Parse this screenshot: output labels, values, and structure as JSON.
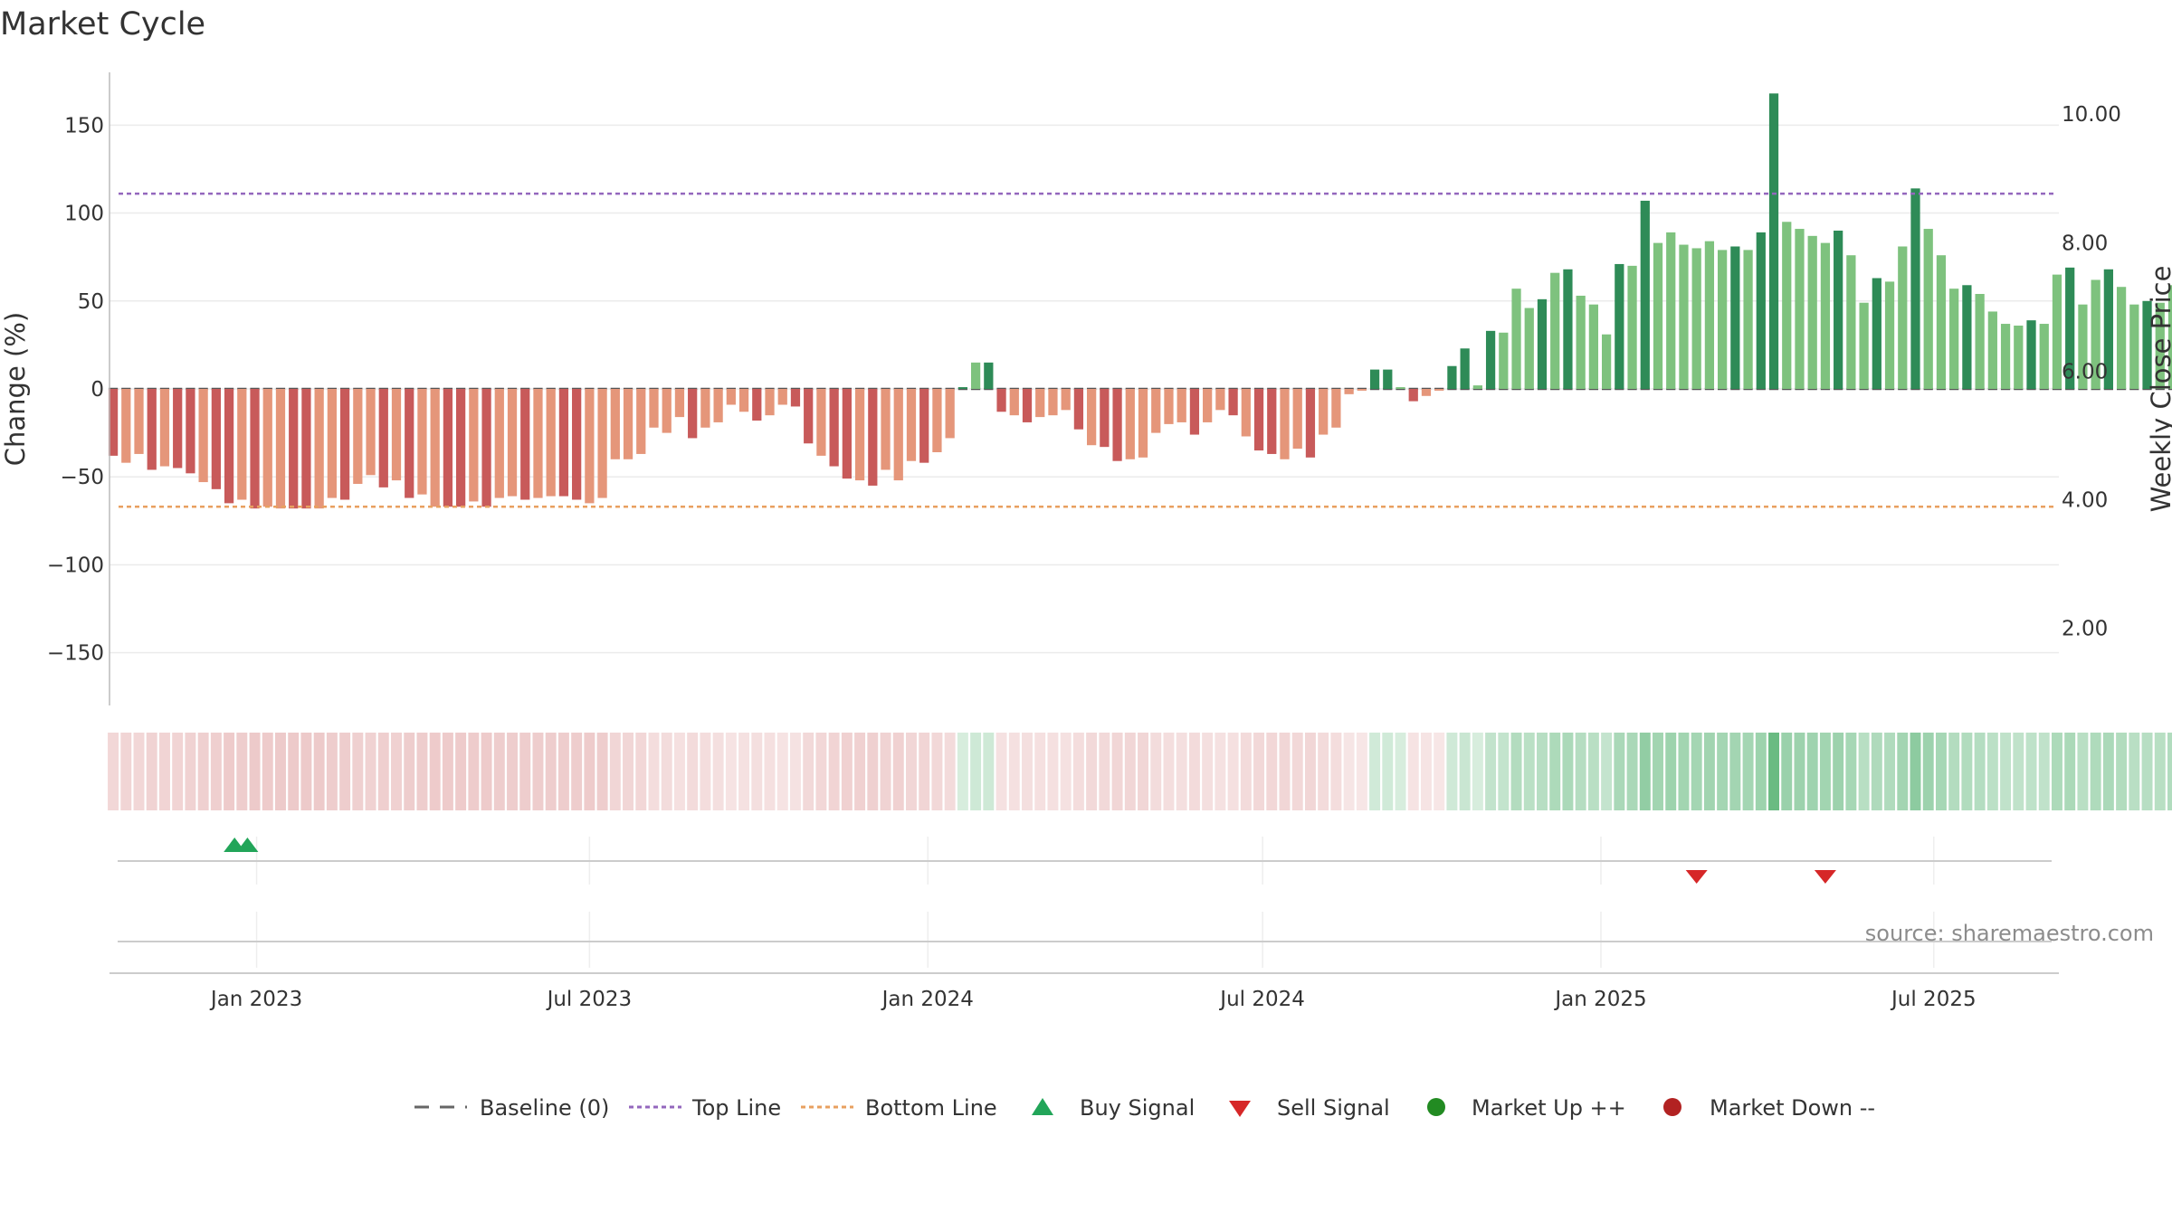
{
  "chart_data": {
    "type": "bar",
    "title": "Market Cycle",
    "ylabel": "Change (%)",
    "y2label": "Weekly Close Price",
    "ylim": [
      -180,
      180
    ],
    "yticks": [
      150,
      100,
      50,
      0,
      -50,
      -100,
      -150
    ],
    "ytick_labels": [
      "150",
      "100",
      "50",
      "0",
      "−50",
      "−100",
      "−150"
    ],
    "y2ticks": [
      10,
      8,
      6,
      4,
      2
    ],
    "y2tick_labels": [
      "10.00",
      "8.00",
      "6.00",
      "4.00",
      "2.00"
    ],
    "y2lim": [
      0.8,
      10.65
    ],
    "xlim": [
      "2022-10-13",
      "2025-09-07"
    ],
    "xticks": [
      "2023-01-01",
      "2023-07-01",
      "2024-01-01",
      "2024-07-01",
      "2025-01-01",
      "2025-07-01"
    ],
    "xtick_labels": [
      "Jan 2023",
      "Jul 2023",
      "Jan 2024",
      "Jul 2024",
      "Jan 2025",
      "Jul 2025"
    ],
    "first_week": "2022-10-15",
    "values": [
      -38,
      -42,
      -37,
      -46,
      -44,
      -45,
      -48,
      -53,
      -57,
      -65,
      -63,
      -68,
      -67,
      -68,
      -68,
      -68,
      -68,
      -62,
      -63,
      -54,
      -49,
      -56,
      -52,
      -62,
      -60,
      -67,
      -67,
      -67,
      -64,
      -67,
      -62,
      -61,
      -63,
      -62,
      -61,
      -61,
      -63,
      -65,
      -62,
      -40,
      -40,
      -37,
      -22,
      -25,
      -16,
      -28,
      -22,
      -19,
      -9,
      -13,
      -18,
      -15,
      -9,
      -10,
      -31,
      -38,
      -44,
      -51,
      -52,
      -55,
      -46,
      -52,
      -41,
      -42,
      -36,
      -28,
      1,
      15,
      15,
      -13,
      -15,
      -19,
      -16,
      -15,
      -12,
      -23,
      -32,
      -33,
      -41,
      -40,
      -39,
      -25,
      -20,
      -19,
      -26,
      -19,
      -12,
      -15,
      -27,
      -35,
      -37,
      -40,
      -34,
      -39,
      -26,
      -22,
      -3,
      -1,
      11,
      11,
      1,
      -7,
      -4,
      -1,
      13,
      23,
      2,
      33,
      32,
      57,
      46,
      51,
      66,
      68,
      53,
      48,
      31,
      71,
      70,
      107,
      83,
      89,
      82,
      80,
      84,
      79,
      81,
      79,
      89,
      168,
      95,
      91,
      87,
      83,
      90,
      76,
      49,
      63,
      61,
      81,
      114,
      91,
      76,
      57,
      59,
      54,
      44,
      37,
      36,
      39,
      37,
      65,
      69,
      48,
      62,
      68,
      58,
      48,
      50,
      49,
      59
    ],
    "bar_colors": {
      "strong_negative": "#c85a5a",
      "weak_negative": "#e5967a",
      "strong_positive": "#2e8b57",
      "weak_positive": "#7ec27e"
    },
    "top_line": 111,
    "bottom_line": -67,
    "baseline": 0,
    "line_colors": {
      "baseline": "#666666",
      "top_line": "#9467bd",
      "bottom_line": "#e8a060"
    },
    "buy_signals": [
      "2022-12-20",
      "2022-12-27"
    ],
    "sell_signals": [
      "2025-02-22",
      "2025-05-03"
    ],
    "signal_colors": {
      "buy": "#22a559",
      "sell": "#d62728"
    },
    "grid": true,
    "legend_position": "bottom-center",
    "legend": {
      "baseline": "Baseline (0)",
      "top": "Top Line",
      "bottom": "Bottom Line",
      "buy": "Buy Signal",
      "sell": "Sell Signal",
      "up": "Market Up ++",
      "down": "Market Down --"
    },
    "market_colors": {
      "up": "#228b22",
      "down": "#b22222"
    },
    "source": "source: sharemaestro.com"
  }
}
